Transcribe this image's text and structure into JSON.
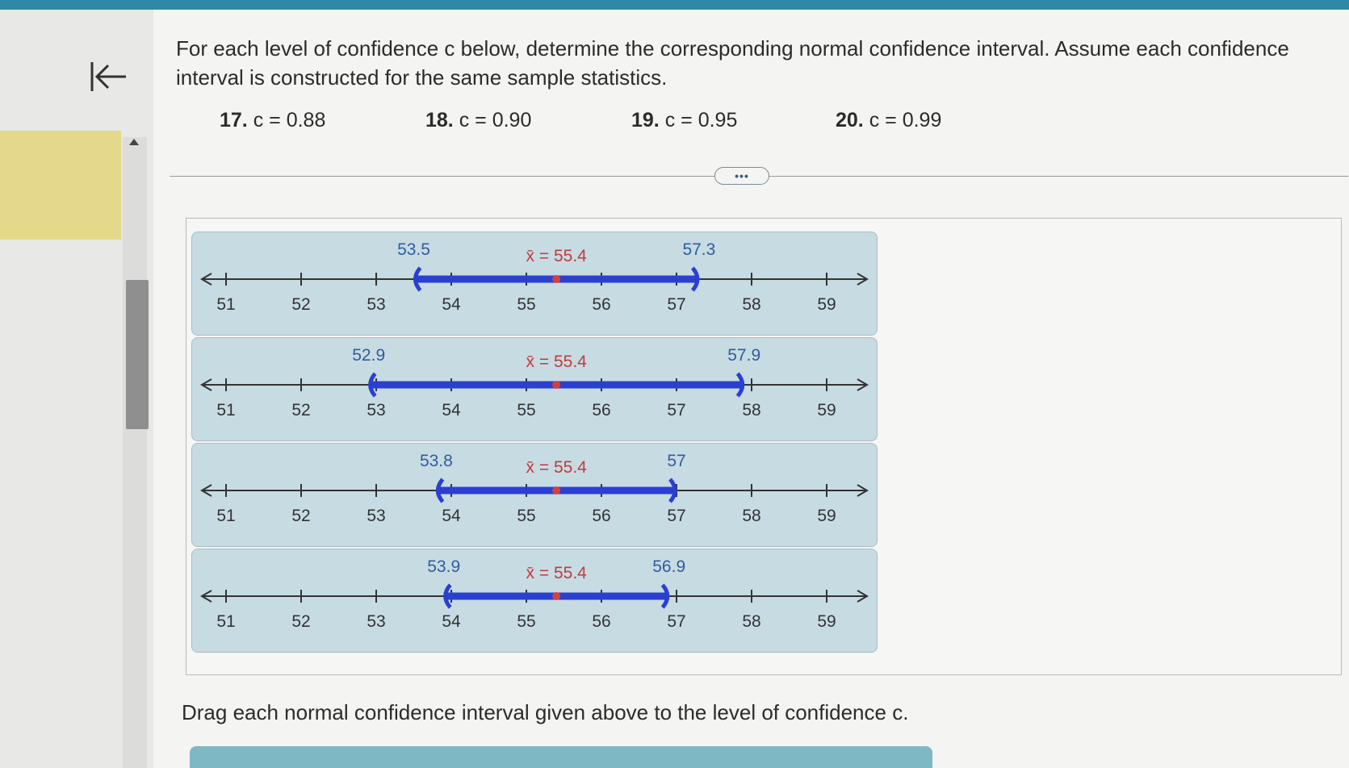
{
  "question_text": "For each level of confidence c below, determine the corresponding normal confidence interval. Assume each confidence interval is constructed for the same sample statistics.",
  "problems": [
    {
      "num": "17.",
      "text": "c = 0.88"
    },
    {
      "num": "18.",
      "text": "c = 0.90"
    },
    {
      "num": "19.",
      "text": "c = 0.95"
    },
    {
      "num": "20.",
      "text": "c = 0.99"
    }
  ],
  "more_button_label": "•••",
  "instruction": "Drag each normal confidence interval given above to the level of confidence c.",
  "icons": {
    "back": "first-page-icon",
    "scroll": "scroll-up-icon",
    "more": "more-dots-icon"
  },
  "colors": {
    "interval": "#2b3fd1",
    "mean_dot": "#d64040",
    "card_bg": "#c7dbe3",
    "label_blue": "#2e5d9e",
    "label_red": "#c23b3b"
  },
  "number_line": {
    "ticks": [
      "51",
      "52",
      "53",
      "54",
      "55",
      "56",
      "57",
      "58",
      "59"
    ]
  },
  "intervals": [
    {
      "lower": 53.5,
      "upper": 57.3,
      "lower_label": "53.5",
      "upper_label": "57.3",
      "mean_label": "x̄ = 55.4"
    },
    {
      "lower": 52.9,
      "upper": 57.9,
      "lower_label": "52.9",
      "upper_label": "57.9",
      "mean_label": "x̄ = 55.4"
    },
    {
      "lower": 53.8,
      "upper": 57.0,
      "lower_label": "53.8",
      "upper_label": "57",
      "mean_label": "x̄ = 55.4"
    },
    {
      "lower": 53.9,
      "upper": 56.9,
      "lower_label": "53.9",
      "upper_label": "56.9",
      "mean_label": "x̄ = 55.4"
    }
  ]
}
